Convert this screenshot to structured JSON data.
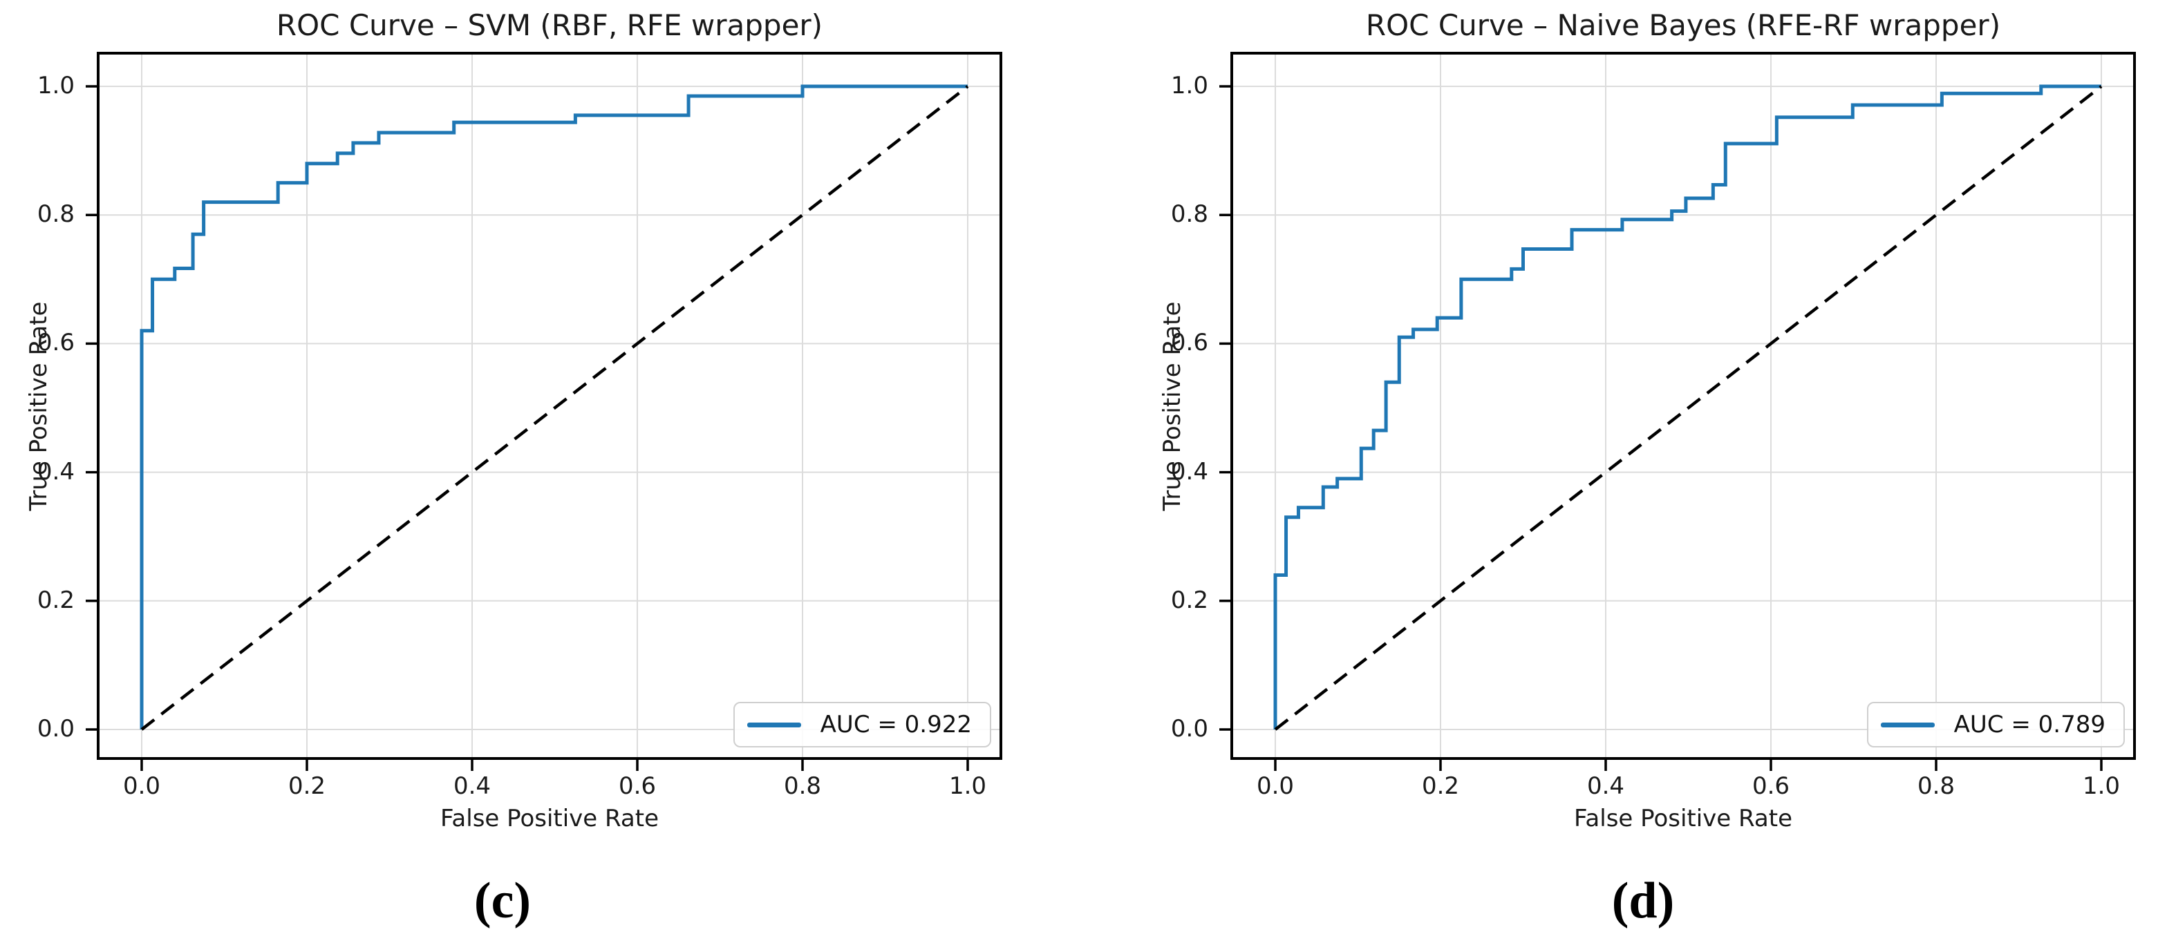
{
  "figure": {
    "background": "#ffffff",
    "captions": {
      "left": "(c)",
      "right": "(d)"
    }
  },
  "chart_data": [
    {
      "type": "line",
      "subtype": "roc-step-curve",
      "title": "ROC Curve – SVM (RBF, RFE wrapper)",
      "xlabel": "False Positive Rate",
      "ylabel": "True Positive Rate",
      "caption": "(c)",
      "auc": 0.922,
      "legend": [
        "AUC = 0.922"
      ],
      "legend_position": "lower right",
      "grid": true,
      "xlim": [
        -0.054,
        1.042
      ],
      "ylim": [
        -0.054,
        1.047
      ],
      "xticks": [
        0.0,
        0.2,
        0.4,
        0.6,
        0.8,
        1.0
      ],
      "yticks": [
        0.0,
        0.2,
        0.4,
        0.6,
        0.8,
        1.0
      ],
      "xtick_labels": [
        "0.0",
        "0.2",
        "0.4",
        "0.6",
        "0.8",
        "1.0"
      ],
      "ytick_labels": [
        "0.0",
        "0.2",
        "0.4",
        "0.6",
        "0.8",
        "1.0"
      ],
      "series": [
        {
          "name": "ROC curve",
          "color": "#1f77b4",
          "style": "step",
          "points": [
            [
              0.0,
              0.0
            ],
            [
              0.0,
              0.62
            ],
            [
              0.013,
              0.7
            ],
            [
              0.04,
              0.717
            ],
            [
              0.062,
              0.77
            ],
            [
              0.075,
              0.82
            ],
            [
              0.165,
              0.85
            ],
            [
              0.2,
              0.88
            ],
            [
              0.237,
              0.896
            ],
            [
              0.256,
              0.912
            ],
            [
              0.287,
              0.928
            ],
            [
              0.378,
              0.944
            ],
            [
              0.525,
              0.955
            ],
            [
              0.662,
              0.985
            ],
            [
              0.8,
              1.0
            ],
            [
              1.0,
              1.0
            ]
          ]
        },
        {
          "name": "chance line",
          "color": "#000000",
          "style": "dashed",
          "points": [
            [
              0.0,
              0.0
            ],
            [
              1.0,
              1.0
            ]
          ]
        }
      ]
    },
    {
      "type": "line",
      "subtype": "roc-step-curve",
      "title": "ROC Curve – Naive Bayes (RFE-RF wrapper)",
      "xlabel": "False Positive Rate",
      "ylabel": "True Positive Rate",
      "caption": "(d)",
      "auc": 0.789,
      "legend": [
        "AUC = 0.789"
      ],
      "legend_position": "lower right",
      "grid": true,
      "xlim": [
        -0.054,
        1.042
      ],
      "ylim": [
        -0.054,
        1.047
      ],
      "xticks": [
        0.0,
        0.2,
        0.4,
        0.6,
        0.8,
        1.0
      ],
      "yticks": [
        0.0,
        0.2,
        0.4,
        0.6,
        0.8,
        1.0
      ],
      "xtick_labels": [
        "0.0",
        "0.2",
        "0.4",
        "0.6",
        "0.8",
        "1.0"
      ],
      "ytick_labels": [
        "0.0",
        "0.2",
        "0.4",
        "0.6",
        "0.8",
        "1.0"
      ],
      "series": [
        {
          "name": "ROC curve",
          "color": "#1f77b4",
          "style": "step",
          "points": [
            [
              0.0,
              0.0
            ],
            [
              0.0,
              0.24
            ],
            [
              0.013,
              0.33
            ],
            [
              0.028,
              0.345
            ],
            [
              0.058,
              0.377
            ],
            [
              0.075,
              0.39
            ],
            [
              0.104,
              0.437
            ],
            [
              0.119,
              0.465
            ],
            [
              0.134,
              0.54
            ],
            [
              0.15,
              0.61
            ],
            [
              0.167,
              0.622
            ],
            [
              0.196,
              0.64
            ],
            [
              0.225,
              0.7
            ],
            [
              0.286,
              0.716
            ],
            [
              0.3,
              0.747
            ],
            [
              0.359,
              0.777
            ],
            [
              0.42,
              0.793
            ],
            [
              0.48,
              0.806
            ],
            [
              0.497,
              0.826
            ],
            [
              0.53,
              0.847
            ],
            [
              0.545,
              0.911
            ],
            [
              0.607,
              0.952
            ],
            [
              0.699,
              0.971
            ],
            [
              0.807,
              0.989
            ],
            [
              0.927,
              1.0
            ],
            [
              1.0,
              1.0
            ]
          ]
        },
        {
          "name": "chance line",
          "color": "#000000",
          "style": "dashed",
          "points": [
            [
              0.0,
              0.0
            ],
            [
              1.0,
              1.0
            ]
          ]
        }
      ]
    }
  ],
  "style_tokens": {
    "curve_color": "#1f77b4",
    "diagonal_color": "#000000",
    "grid_color": "#dcdcdc",
    "spine_color": "#000000",
    "text_color": "#1a1a1a"
  }
}
